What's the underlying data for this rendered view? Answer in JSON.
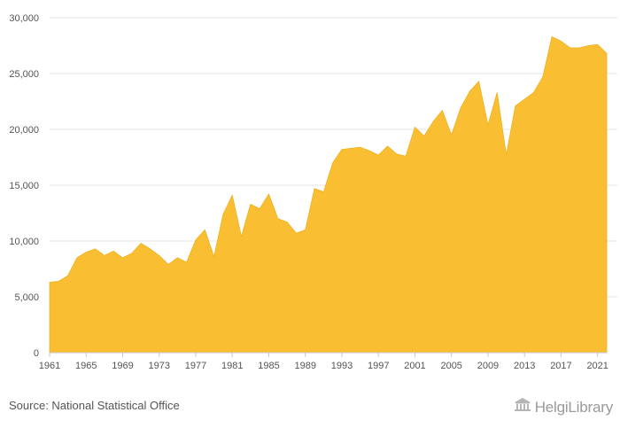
{
  "chart_data": {
    "type": "area",
    "title": "",
    "xlabel": "",
    "ylabel": "",
    "ylim": [
      0,
      30000
    ],
    "y_ticks": [
      "0",
      "5,000",
      "10,000",
      "15,000",
      "20,000",
      "25,000",
      "30,000"
    ],
    "x_ticks": [
      "1961",
      "1965",
      "1969",
      "1973",
      "1977",
      "1981",
      "1985",
      "1989",
      "1993",
      "1997",
      "2001",
      "2005",
      "2009",
      "2013",
      "2017",
      "2021"
    ],
    "grid": "horizontal",
    "color": "#F9BE31",
    "series": [
      {
        "x": [
          1961,
          1962,
          1963,
          1964,
          1965,
          1966,
          1967,
          1968,
          1969,
          1970,
          1971,
          1972,
          1973,
          1974,
          1975,
          1976,
          1977,
          1978,
          1979,
          1980,
          1981,
          1982,
          1983,
          1984,
          1985,
          1986,
          1987,
          1988,
          1989,
          1990,
          1991,
          1992,
          1993,
          1994,
          1995,
          1996,
          1997,
          1998,
          1999,
          2000,
          2001,
          2002,
          2003,
          2004,
          2005,
          2006,
          2007,
          2008,
          2009,
          2010,
          2011,
          2012,
          2013,
          2014,
          2015,
          2016,
          2017,
          2018,
          2019,
          2020,
          2021,
          2022
        ],
        "values": [
          6300,
          6400,
          6900,
          8500,
          9000,
          9300,
          8700,
          9100,
          8500,
          8900,
          9800,
          9300,
          8700,
          7900,
          8500,
          8100,
          10100,
          11000,
          8600,
          12400,
          14100,
          10400,
          13300,
          12900,
          14200,
          12000,
          11700,
          10700,
          11000,
          14700,
          14400,
          17000,
          18200,
          18300,
          18400,
          18100,
          17700,
          18500,
          17800,
          17600,
          20200,
          19400,
          20700,
          21700,
          19500,
          21900,
          23400,
          24300,
          20400,
          23300,
          17700,
          22100,
          22700,
          23300,
          24700,
          28300,
          27900,
          27300,
          27300,
          27500,
          27600,
          26800
        ]
      }
    ]
  },
  "footer": {
    "source": "Source: National Statistical Office",
    "brand_name": "HelgiLibrary",
    "brand_icon": "library-building-icon"
  }
}
